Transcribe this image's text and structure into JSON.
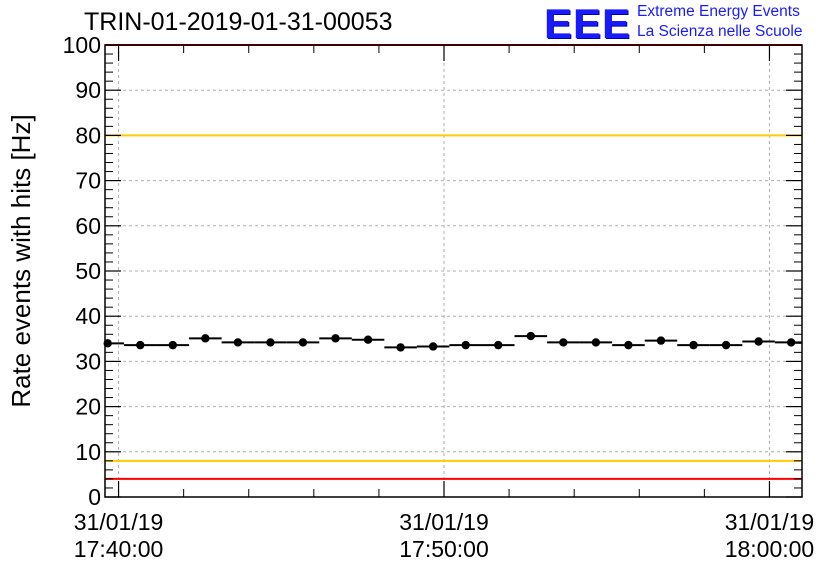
{
  "header": {
    "title": "TRIN-01-2019-01-31-00053",
    "logo_text": "EEE",
    "logo_line1": "Extreme Energy Events",
    "logo_line2": "La Scienza nelle Scuole"
  },
  "chart_data": {
    "type": "scatter",
    "ylabel": "Rate events with hits [Hz]",
    "ylim": [
      0,
      100
    ],
    "yticks": [
      0,
      10,
      20,
      30,
      40,
      50,
      60,
      70,
      80,
      90,
      100
    ],
    "xlim": [
      "2019-01-31 17:39:35",
      "2019-01-31 18:01:00"
    ],
    "xticks": [
      {
        "time": "2019-01-31 17:40:00",
        "date_label": "31/01/19",
        "time_label": "17:40:00"
      },
      {
        "time": "2019-01-31 17:50:00",
        "date_label": "31/01/19",
        "time_label": "17:50:00"
      },
      {
        "time": "2019-01-31 18:00:00",
        "date_label": "31/01/19",
        "time_label": "18:00:00"
      }
    ],
    "grid": true,
    "reference_lines": [
      {
        "y": 100,
        "color": "#ff0000"
      },
      {
        "y": 80,
        "color": "#ffcc00"
      },
      {
        "y": 8,
        "color": "#ffcc00"
      },
      {
        "y": 4,
        "color": "#ff0000"
      }
    ],
    "series": [
      {
        "marker_color": "#000000",
        "points": [
          {
            "x": "2019-01-31 17:39:40",
            "y": 34.0
          },
          {
            "x": "2019-01-31 17:40:40",
            "y": 33.6
          },
          {
            "x": "2019-01-31 17:41:40",
            "y": 33.6
          },
          {
            "x": "2019-01-31 17:42:40",
            "y": 35.1
          },
          {
            "x": "2019-01-31 17:43:40",
            "y": 34.2
          },
          {
            "x": "2019-01-31 17:44:40",
            "y": 34.2
          },
          {
            "x": "2019-01-31 17:45:40",
            "y": 34.2
          },
          {
            "x": "2019-01-31 17:46:40",
            "y": 35.1
          },
          {
            "x": "2019-01-31 17:47:40",
            "y": 34.8
          },
          {
            "x": "2019-01-31 17:48:40",
            "y": 33.1
          },
          {
            "x": "2019-01-31 17:49:40",
            "y": 33.3
          },
          {
            "x": "2019-01-31 17:50:40",
            "y": 33.6
          },
          {
            "x": "2019-01-31 17:51:40",
            "y": 33.6
          },
          {
            "x": "2019-01-31 17:52:40",
            "y": 35.6
          },
          {
            "x": "2019-01-31 17:53:40",
            "y": 34.2
          },
          {
            "x": "2019-01-31 17:54:40",
            "y": 34.2
          },
          {
            "x": "2019-01-31 17:55:40",
            "y": 33.6
          },
          {
            "x": "2019-01-31 17:56:40",
            "y": 34.6
          },
          {
            "x": "2019-01-31 17:57:40",
            "y": 33.6
          },
          {
            "x": "2019-01-31 17:58:40",
            "y": 33.6
          },
          {
            "x": "2019-01-31 17:59:40",
            "y": 34.4
          },
          {
            "x": "2019-01-31 18:00:40",
            "y": 34.2
          }
        ]
      }
    ]
  }
}
